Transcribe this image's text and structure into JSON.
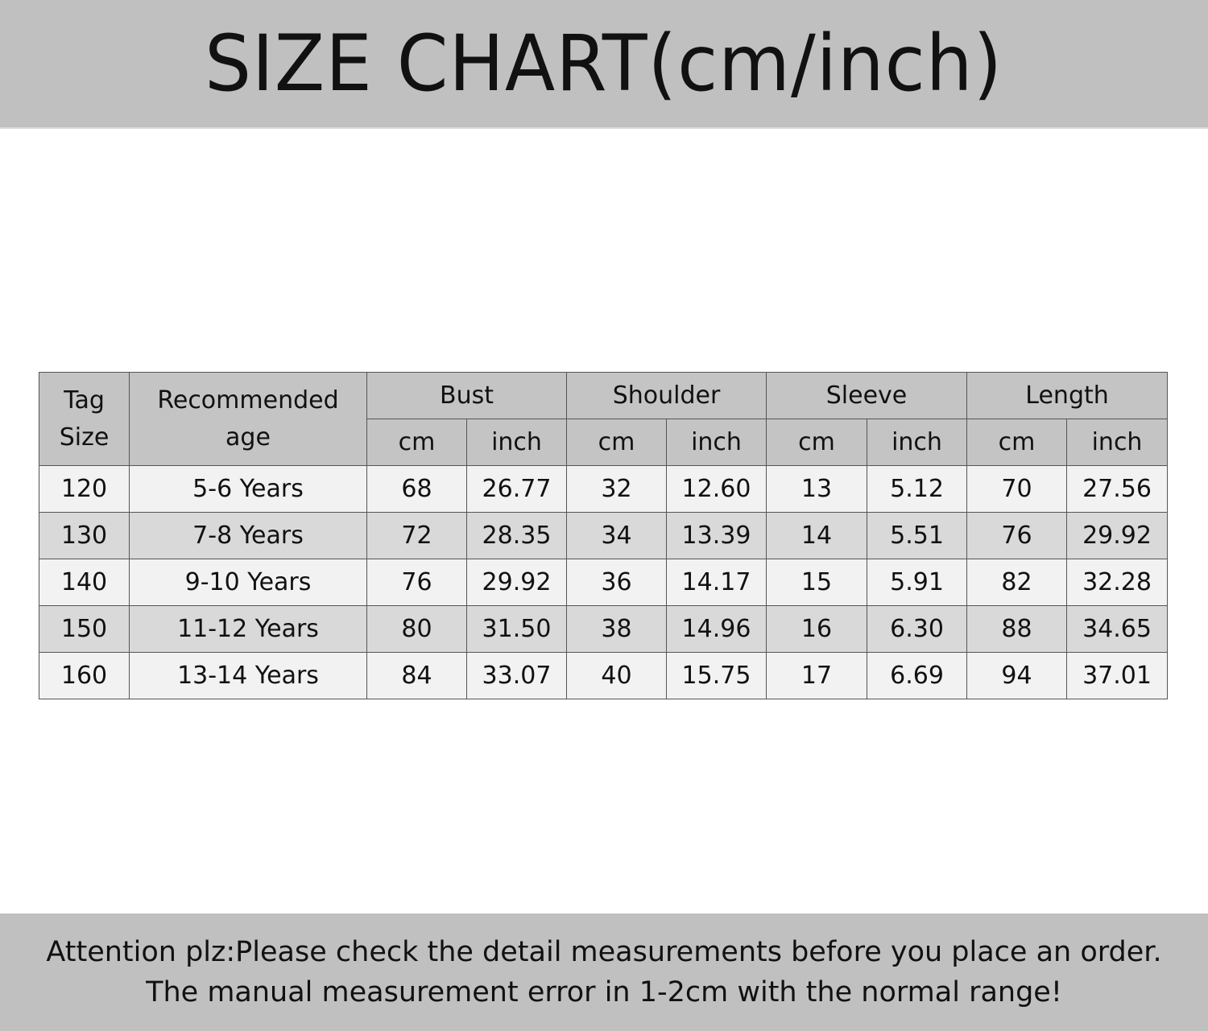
{
  "title": "SIZE CHART(cm/inch)",
  "table": {
    "headers": {
      "tag_size": "Tag Size",
      "age": "Recommended age",
      "groups": [
        "Bust",
        "Shoulder",
        "Sleeve",
        "Length"
      ],
      "units": [
        "cm",
        "inch",
        "cm",
        "inch",
        "cm",
        "inch",
        "cm",
        "inch"
      ]
    },
    "rows": [
      {
        "tag": "120",
        "age": "5-6 Years",
        "values": [
          "68",
          "26.77",
          "32",
          "12.60",
          "13",
          "5.12",
          "70",
          "27.56"
        ]
      },
      {
        "tag": "130",
        "age": "7-8 Years",
        "values": [
          "72",
          "28.35",
          "34",
          "13.39",
          "14",
          "5.51",
          "76",
          "29.92"
        ]
      },
      {
        "tag": "140",
        "age": "9-10 Years",
        "values": [
          "76",
          "29.92",
          "36",
          "14.17",
          "15",
          "5.91",
          "82",
          "32.28"
        ]
      },
      {
        "tag": "150",
        "age": "11-12 Years",
        "values": [
          "80",
          "31.50",
          "38",
          "14.96",
          "16",
          "6.30",
          "88",
          "34.65"
        ]
      },
      {
        "tag": "160",
        "age": "13-14 Years",
        "values": [
          "84",
          "33.07",
          "40",
          "15.75",
          "17",
          "6.69",
          "94",
          "37.01"
        ]
      }
    ]
  },
  "footer": {
    "line1": "Attention plz:Please check the detail measurements before you place an order.",
    "line2": "The manual measurement error in 1-2cm with the normal range!"
  },
  "colors": {
    "banner": "#c0c0c0",
    "header": "#c4c4c4",
    "row_light": "#f2f2f2",
    "row_dark": "#d9d9d9"
  }
}
